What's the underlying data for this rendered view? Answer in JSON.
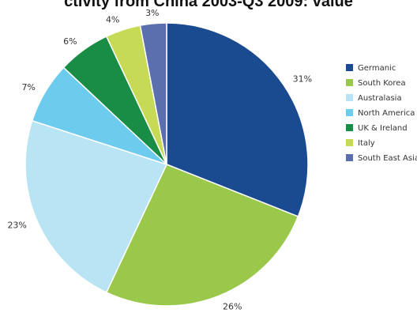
{
  "chart_data": {
    "type": "pie",
    "title": "ctivity from China 2003-Q3 2009: value",
    "legend_position": "right",
    "slices": [
      {
        "name": "Germanic",
        "value": 31,
        "label": "31%",
        "color": "#1a4a8f"
      },
      {
        "name": "South Korea",
        "value": 26,
        "label": "26%",
        "color": "#9ac84a"
      },
      {
        "name": "Australasia",
        "value": 23,
        "label": "23%",
        "color": "#b9e4f3"
      },
      {
        "name": "North America",
        "value": 7,
        "label": "7%",
        "color": "#6dcbee"
      },
      {
        "name": "UK & Ireland",
        "value": 6,
        "label": "6%",
        "color": "#198c45"
      },
      {
        "name": "Italy",
        "value": 4,
        "label": "4%",
        "color": "#c7da55"
      },
      {
        "name": "South East Asia",
        "value": 3,
        "label": "3%",
        "color": "#5b6fae"
      }
    ]
  }
}
